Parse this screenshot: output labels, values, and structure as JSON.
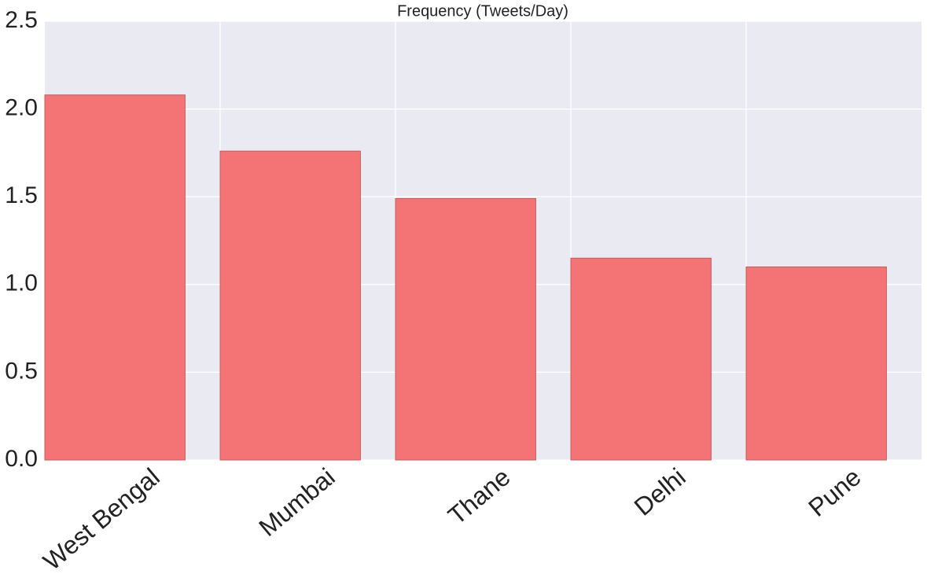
{
  "chart_data": {
    "type": "bar",
    "title": "Frequency (Tweets/Day)",
    "categories": [
      "West Bengal",
      "Mumbai",
      "Thane",
      "Delhi",
      "Pune"
    ],
    "values": [
      2.08,
      1.76,
      1.49,
      1.15,
      1.1
    ],
    "color": "#f47476",
    "ylim": [
      0,
      2.5
    ],
    "yticks": [
      {
        "value": 0,
        "label": "0.0"
      },
      {
        "value": 0.5,
        "label": "0.5"
      },
      {
        "value": 1,
        "label": "1.0"
      },
      {
        "value": 1.5,
        "label": "1.5"
      },
      {
        "value": 2,
        "label": "2.0"
      },
      {
        "value": 2.5,
        "label": "2.5"
      }
    ],
    "grid": true
  }
}
